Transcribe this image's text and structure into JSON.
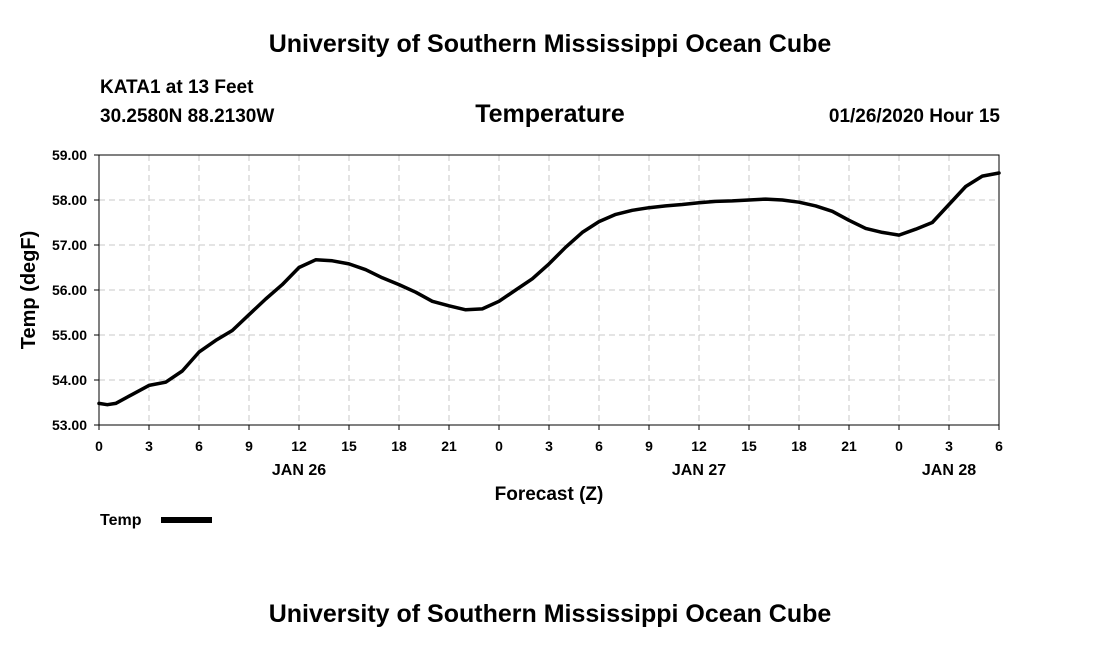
{
  "header": {
    "title": "University of Southern Mississippi Ocean Cube",
    "station": "KATA1 at 13 Feet",
    "coords": "30.2580N 88.2130W",
    "variable": "Temperature",
    "datetime": "01/26/2020 Hour 15"
  },
  "footer": {
    "title": "University of Southern Mississippi Ocean Cube"
  },
  "legend": {
    "label": "Temp"
  },
  "colors": {
    "line": "#000000",
    "grid": "#c8c8c8",
    "background": "#ffffff"
  },
  "chart_data": {
    "type": "line",
    "title": "Temperature",
    "xlabel": "Forecast (Z)",
    "ylabel": "Temp (degF)",
    "xlim": [
      0,
      54
    ],
    "ylim": [
      53.0,
      59.0
    ],
    "y_ticks": [
      "53.00",
      "54.00",
      "55.00",
      "56.00",
      "57.00",
      "58.00",
      "59.00"
    ],
    "y_tick_values": [
      53,
      54,
      55,
      56,
      57,
      58,
      59
    ],
    "x_ticks": [
      "0",
      "3",
      "6",
      "9",
      "12",
      "15",
      "18",
      "21",
      "0",
      "3",
      "6",
      "9",
      "12",
      "15",
      "18",
      "21",
      "0",
      "3",
      "6"
    ],
    "date_labels": [
      {
        "label": "JAN 26",
        "hour": 12
      },
      {
        "label": "JAN 27",
        "hour": 36
      },
      {
        "label": "JAN 28",
        "hour": 51
      }
    ],
    "grid": true,
    "legend_position": "bottom-left",
    "series": [
      {
        "name": "Temp",
        "x": [
          0,
          0.5,
          1,
          2,
          3,
          4,
          5,
          6,
          7,
          8,
          9,
          10,
          11,
          12,
          13,
          14,
          15,
          16,
          17,
          18,
          19,
          20,
          21,
          22,
          23,
          24,
          25,
          26,
          27,
          28,
          29,
          30,
          31,
          32,
          33,
          34,
          35,
          36,
          37,
          38,
          39,
          40,
          41,
          42,
          43,
          44,
          45,
          46,
          47,
          48,
          49,
          50,
          51,
          52,
          53,
          54
        ],
        "values": [
          53.48,
          53.45,
          53.48,
          53.68,
          53.88,
          53.95,
          54.2,
          54.62,
          54.88,
          55.1,
          55.45,
          55.8,
          56.12,
          56.5,
          56.67,
          56.65,
          56.58,
          56.45,
          56.27,
          56.12,
          55.95,
          55.75,
          55.65,
          55.56,
          55.58,
          55.75,
          56.0,
          56.25,
          56.58,
          56.95,
          57.28,
          57.52,
          57.68,
          57.77,
          57.83,
          57.87,
          57.9,
          57.94,
          57.97,
          57.98,
          58.0,
          58.02,
          58.0,
          57.95,
          57.87,
          57.75,
          57.55,
          57.37,
          57.28,
          57.22,
          57.35,
          57.5,
          57.9,
          58.3,
          58.53,
          58.6
        ]
      }
    ]
  }
}
